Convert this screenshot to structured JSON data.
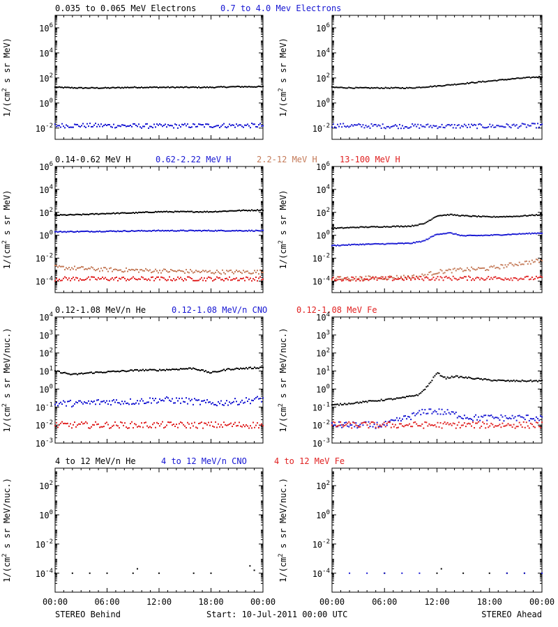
{
  "colors": {
    "black": "#000000",
    "blue": "#1515d2",
    "tan": "#c47a58",
    "red": "#e02020"
  },
  "footer": {
    "left": "STEREO Behind",
    "center": "Start: 10-Jul-2011 00:00 UTC",
    "right": "STEREO Ahead"
  },
  "panel_rows": [
    {
      "legend": [
        {
          "text": "0.035 to 0.065 MeV Electrons",
          "color": "black"
        },
        {
          "text": "0.7 to 4.0 Mev Electrons",
          "color": "blue"
        }
      ],
      "ylabel_main": "1/(cm",
      "ylabel_sup": "2",
      "ylabel_rest": " s sr MeV)",
      "ticks": [
        {
          "base": "10",
          "exp": "6",
          "exponent": 6
        },
        {
          "base": "10",
          "exp": "4",
          "exponent": 4
        },
        {
          "base": "10",
          "exp": "2",
          "exponent": 2
        },
        {
          "base": "10",
          "exp": "0",
          "exponent": 0
        },
        {
          "base": "10",
          "exp": "-2",
          "exponent": -2
        }
      ]
    },
    {
      "legend": [
        {
          "text": "0.14-0.62 MeV H",
          "color": "black"
        },
        {
          "text": "0.62-2.22 MeV H",
          "color": "blue"
        },
        {
          "text": "2.2-12 MeV H",
          "color": "tan"
        },
        {
          "text": "13-100 MeV H",
          "color": "red"
        }
      ],
      "ylabel_main": "1/(cm",
      "ylabel_sup": "2",
      "ylabel_rest": " s sr MeV)",
      "ticks": [
        {
          "base": "10",
          "exp": "6",
          "exponent": 6
        },
        {
          "base": "10",
          "exp": "4",
          "exponent": 4
        },
        {
          "base": "10",
          "exp": "2",
          "exponent": 2
        },
        {
          "base": "10",
          "exp": "0",
          "exponent": 0
        },
        {
          "base": "10",
          "exp": "-2",
          "exponent": -2
        },
        {
          "base": "10",
          "exp": "-4",
          "exponent": -4
        }
      ]
    },
    {
      "legend": [
        {
          "text": "0.12-1.08 MeV/n He",
          "color": "black"
        },
        {
          "text": "0.12-1.08 MeV/n CNO",
          "color": "blue"
        },
        {
          "text": "0.12-1.08 MeV Fe",
          "color": "red"
        }
      ],
      "ylabel_main": "1/(cm",
      "ylabel_sup": "2",
      "ylabel_rest": " s sr MeV/nuc.)",
      "ticks": [
        {
          "base": "10",
          "exp": "4",
          "exponent": 4
        },
        {
          "base": "10",
          "exp": "3",
          "exponent": 3
        },
        {
          "base": "10",
          "exp": "2",
          "exponent": 2
        },
        {
          "base": "10",
          "exp": "1",
          "exponent": 1
        },
        {
          "base": "10",
          "exp": "0",
          "exponent": 0
        },
        {
          "base": "10",
          "exp": "-1",
          "exponent": -1
        },
        {
          "base": "10",
          "exp": "-2",
          "exponent": -2
        },
        {
          "base": "10",
          "exp": "-3",
          "exponent": -3
        }
      ]
    },
    {
      "legend": [
        {
          "text": "4 to 12 MeV/n He",
          "color": "black"
        },
        {
          "text": "4 to 12 MeV/n CNO",
          "color": "blue"
        },
        {
          "text": "4 to 12 MeV Fe",
          "color": "red"
        }
      ],
      "ylabel_main": "1/(cm",
      "ylabel_sup": "2",
      "ylabel_rest": " s sr MeV/nuc.)",
      "ticks": [
        {
          "base": "10",
          "exp": "2",
          "exponent": 2
        },
        {
          "base": "10",
          "exp": "0",
          "exponent": 0
        },
        {
          "base": "10",
          "exp": "-2",
          "exponent": -2
        },
        {
          "base": "10",
          "exp": "-4",
          "exponent": -4
        }
      ]
    }
  ],
  "chart_data": {
    "type": "scatter",
    "x_unit": "hours from 10-Jul-2011 00:00 UTC",
    "xticks": [
      "00:00",
      "06:00",
      "12:00",
      "18:00",
      "00:00"
    ],
    "xtick_hours": [
      0,
      6,
      12,
      18,
      24
    ],
    "yscale": "log",
    "panels": [
      {
        "row": 0,
        "column": "STEREO Behind",
        "ylim_log10": [
          -2.9,
          7.0
        ],
        "series": [
          {
            "name": "0.035 to 0.065 MeV Electrons",
            "color": "black",
            "x_hours": [
              0,
              3,
              6,
              9,
              12,
              15,
              18,
              21,
              24
            ],
            "log10_flux": [
              1.25,
              1.2,
              1.2,
              1.25,
              1.25,
              1.25,
              1.25,
              1.3,
              1.3
            ]
          },
          {
            "name": "0.7 to 4.0 Mev Electrons",
            "color": "blue",
            "x_hours": [
              0,
              6,
              12,
              18,
              24
            ],
            "log10_flux": [
              -1.8,
              -1.8,
              -1.85,
              -1.8,
              -1.8
            ]
          }
        ]
      },
      {
        "row": 0,
        "column": "STEREO Ahead",
        "ylim_log10": [
          -2.9,
          7.0
        ],
        "series": [
          {
            "name": "0.035 to 0.065 MeV Electrons",
            "color": "black",
            "x_hours": [
              0,
              3,
              6,
              9,
              12,
              15,
              18,
              21,
              24
            ],
            "log10_flux": [
              1.25,
              1.2,
              1.2,
              1.2,
              1.35,
              1.55,
              1.75,
              1.95,
              2.1
            ]
          },
          {
            "name": "0.7 to 4.0 Mev Electrons",
            "color": "blue",
            "x_hours": [
              0,
              6,
              12,
              18,
              24
            ],
            "log10_flux": [
              -1.8,
              -1.85,
              -1.85,
              -1.85,
              -1.8
            ]
          }
        ]
      },
      {
        "row": 1,
        "column": "STEREO Behind",
        "ylim_log10": [
          -5.0,
          6.0
        ],
        "series": [
          {
            "name": "0.14-0.62 MeV H",
            "color": "black",
            "x_hours": [
              0,
              3,
              6,
              9,
              12,
              15,
              18,
              21,
              24
            ],
            "log10_flux": [
              1.75,
              1.8,
              1.9,
              1.95,
              2.05,
              2.05,
              2.05,
              2.15,
              2.2
            ]
          },
          {
            "name": "0.62-2.22 MeV H",
            "color": "blue",
            "x_hours": [
              0,
              6,
              12,
              18,
              24
            ],
            "log10_flux": [
              0.3,
              0.35,
              0.4,
              0.4,
              0.4
            ]
          },
          {
            "name": "2.2-12 MeV H",
            "color": "tan",
            "x_hours": [
              0,
              6,
              12,
              18,
              24
            ],
            "log10_flux": [
              -2.8,
              -3.0,
              -3.1,
              -3.2,
              -3.2
            ]
          },
          {
            "name": "13-100 MeV H",
            "color": "red",
            "x_hours": [
              0,
              6,
              12,
              18,
              24
            ],
            "log10_flux": [
              -3.8,
              -3.8,
              -3.8,
              -3.8,
              -3.8
            ]
          }
        ]
      },
      {
        "row": 1,
        "column": "STEREO Ahead",
        "ylim_log10": [
          -5.0,
          6.0
        ],
        "series": [
          {
            "name": "0.14-0.62 MeV H",
            "color": "black",
            "x_hours": [
              0,
              3,
              6,
              9,
              10.5,
              12,
              13.5,
              15,
              18,
              21,
              24
            ],
            "log10_flux": [
              0.6,
              0.7,
              0.75,
              0.8,
              1.0,
              1.7,
              1.8,
              1.7,
              1.6,
              1.65,
              1.8
            ]
          },
          {
            "name": "0.62-2.22 MeV H",
            "color": "blue",
            "x_hours": [
              0,
              3,
              6,
              9,
              10.5,
              12,
              13.5,
              15,
              18,
              21,
              24
            ],
            "log10_flux": [
              -0.9,
              -0.8,
              -0.75,
              -0.7,
              -0.5,
              0.1,
              0.2,
              -0.05,
              0.0,
              0.1,
              0.2
            ]
          },
          {
            "name": "2.2-12 MeV H",
            "color": "tan",
            "x_hours": [
              0,
              6,
              10,
              12,
              15,
              18,
              21,
              24
            ],
            "log10_flux": [
              -3.8,
              -3.7,
              -3.6,
              -3.2,
              -3.0,
              -2.9,
              -2.5,
              -2.2
            ]
          },
          {
            "name": "13-100 MeV H",
            "color": "red",
            "x_hours": [
              0,
              6,
              12,
              18,
              24
            ],
            "log10_flux": [
              -3.8,
              -3.8,
              -3.75,
              -3.75,
              -3.75
            ]
          }
        ]
      },
      {
        "row": 2,
        "column": "STEREO Behind",
        "ylim_log10": [
          -3.0,
          4.0
        ],
        "series": [
          {
            "name": "0.12-1.08 MeV/n He",
            "color": "black",
            "x_hours": [
              0,
              2,
              4,
              6,
              8,
              10,
              12,
              14,
              16,
              18,
              20,
              22,
              24
            ],
            "log10_flux": [
              1.0,
              0.8,
              0.9,
              0.95,
              1.0,
              1.05,
              1.05,
              1.1,
              1.15,
              0.9,
              1.1,
              1.15,
              1.2
            ]
          },
          {
            "name": "0.12-1.08 MeV/n CNO",
            "color": "blue",
            "x_hours": [
              0,
              3,
              6,
              9,
              12,
              15,
              18,
              21,
              24
            ],
            "log10_flux": [
              -0.8,
              -0.8,
              -0.7,
              -0.7,
              -0.6,
              -0.65,
              -0.8,
              -0.7,
              -0.55
            ]
          },
          {
            "name": "0.12-1.08 MeV Fe",
            "color": "red",
            "x_hours": [
              0,
              6,
              12,
              18,
              24
            ],
            "log10_flux": [
              -2.0,
              -2.0,
              -2.0,
              -2.0,
              -2.0
            ]
          }
        ]
      },
      {
        "row": 2,
        "column": "STEREO Ahead",
        "ylim_log10": [
          -3.0,
          4.0
        ],
        "series": [
          {
            "name": "0.12-1.08 MeV/n He",
            "color": "black",
            "x_hours": [
              0,
              2,
              4,
              6,
              8,
              10,
              11,
              12,
              13,
              14,
              16,
              18,
              20,
              22,
              24
            ],
            "log10_flux": [
              -0.9,
              -0.8,
              -0.7,
              -0.6,
              -0.5,
              -0.3,
              0.2,
              0.9,
              0.6,
              0.7,
              0.6,
              0.5,
              0.45,
              0.45,
              0.45
            ]
          },
          {
            "name": "0.12-1.08 MeV/n CNO",
            "color": "blue",
            "x_hours": [
              0,
              6,
              11,
              13,
              16,
              20,
              24
            ],
            "log10_flux": [
              -2.0,
              -2.0,
              -1.2,
              -1.3,
              -1.6,
              -1.6,
              -1.6
            ]
          },
          {
            "name": "0.12-1.08 MeV Fe",
            "color": "red",
            "x_hours": [
              0,
              6,
              12,
              18,
              24
            ],
            "log10_flux": [
              -2.0,
              -2.0,
              -2.0,
              -2.0,
              -2.0
            ]
          }
        ]
      },
      {
        "row": 3,
        "column": "STEREO Behind",
        "ylim_log10": [
          -5.3,
          3.2
        ],
        "series": [
          {
            "name": "4 to 12 MeV/n He",
            "color": "black",
            "x_hours": [
              0,
              2,
              4,
              6,
              9,
              9.5,
              12,
              16,
              18,
              22.5,
              23
            ],
            "log10_flux": [
              -4.0,
              -4.0,
              -4.0,
              -4.0,
              -4.0,
              -3.7,
              -4.0,
              -4.0,
              -4.0,
              -3.5,
              -3.8
            ]
          }
        ]
      },
      {
        "row": 3,
        "column": "STEREO Ahead",
        "ylim_log10": [
          -5.3,
          3.2
        ],
        "series": [
          {
            "name": "4 to 12 MeV/n He",
            "color": "black",
            "x_hours": [
              0,
              6,
              12,
              12.5,
              15,
              18,
              20,
              22
            ],
            "log10_flux": [
              -4.0,
              -4.0,
              -4.0,
              -3.7,
              -4.0,
              -4.0,
              -4.0,
              -4.0
            ]
          },
          {
            "name": "4 to 12 MeV/n CNO",
            "color": "blue",
            "x_hours": [
              2,
              4,
              6,
              8,
              10,
              20,
              22,
              24
            ],
            "log10_flux": [
              -4.0,
              -4.0,
              -4.0,
              -4.0,
              -4.0,
              -4.0,
              -4.0,
              -4.0
            ]
          }
        ]
      }
    ]
  }
}
